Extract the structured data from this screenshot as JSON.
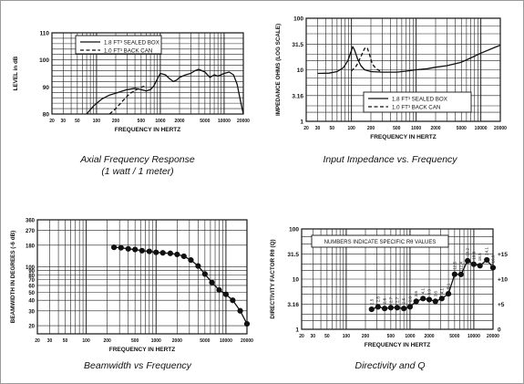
{
  "captions": {
    "afr": {
      "title": "Axial Frequency Response",
      "subtitle": "(1 watt / 1 meter)"
    },
    "imp": {
      "title": "Input Impedance vs. Frequency"
    },
    "bw": {
      "title": "Beamwidth vs Frequency"
    },
    "dq": {
      "title": "Directivity and Q"
    }
  },
  "colors": {
    "ink": "#111111",
    "grid": "#222222",
    "background": "#ffffff"
  },
  "chart_data": [
    {
      "id": "afr",
      "type": "line",
      "xlabel": "FREQUENCY IN HERTZ",
      "ylabel": "LEVEL in dB",
      "xscale": "log",
      "xlim": [
        20,
        20000
      ],
      "ylim": [
        80,
        110
      ],
      "xticks": [
        {
          "v": 20,
          "t": "20"
        },
        {
          "v": 30,
          "t": "30"
        },
        {
          "v": 50,
          "t": "50"
        },
        {
          "v": 100,
          "t": "100"
        },
        {
          "v": 200,
          "t": "200"
        },
        {
          "v": 500,
          "t": "500"
        },
        {
          "v": 1000,
          "t": "1000"
        },
        {
          "v": 2000,
          "t": "2000"
        },
        {
          "v": 5000,
          "t": "5000"
        },
        {
          "v": 10000,
          "t": "10000"
        },
        {
          "v": 20000,
          "t": "20000"
        }
      ],
      "yticks": [
        {
          "v": 80,
          "t": "80"
        },
        {
          "v": 90,
          "t": "90"
        },
        {
          "v": 100,
          "t": "100"
        },
        {
          "v": 110,
          "t": "110"
        }
      ],
      "legend": [
        "1.8 FT³ SEALED BOX",
        "1.0 FT³ BACK CAN"
      ],
      "legend_position": "top-left",
      "series": [
        {
          "name": "1.8 FT³ SEALED BOX",
          "style": "solid",
          "points": [
            [
              70,
              80
            ],
            [
              90,
              83
            ],
            [
              120,
              85.5
            ],
            [
              160,
              87
            ],
            [
              220,
              88
            ],
            [
              300,
              89
            ],
            [
              400,
              89.5
            ],
            [
              500,
              89
            ],
            [
              600,
              88.5
            ],
            [
              700,
              89
            ],
            [
              800,
              90.5
            ],
            [
              900,
              93
            ],
            [
              1000,
              95
            ],
            [
              1200,
              94.5
            ],
            [
              1400,
              93
            ],
            [
              1600,
              92
            ],
            [
              1800,
              92.5
            ],
            [
              2000,
              93.5
            ],
            [
              2500,
              94.5
            ],
            [
              3000,
              95
            ],
            [
              3500,
              96
            ],
            [
              4000,
              96.5
            ],
            [
              5000,
              95.5
            ],
            [
              6000,
              93.5
            ],
            [
              7000,
              94.5
            ],
            [
              8000,
              94
            ],
            [
              10000,
              95
            ],
            [
              12000,
              95.5
            ],
            [
              14000,
              94.5
            ],
            [
              16000,
              91
            ],
            [
              18000,
              85
            ],
            [
              20000,
              80
            ]
          ]
        },
        {
          "name": "1.0 FT³ BACK CAN",
          "style": "dashed",
          "points": [
            [
              160,
              80
            ],
            [
              200,
              82
            ],
            [
              260,
              85
            ],
            [
              330,
              87.5
            ],
            [
              420,
              89
            ],
            [
              520,
              90
            ],
            [
              600,
              90.5
            ]
          ]
        }
      ]
    },
    {
      "id": "imp",
      "type": "line",
      "xlabel": "FREQUENCY IN HERTZ",
      "ylabel": "IMPEDANCE OHMS (LOG SCALE)",
      "xscale": "log",
      "yscale": "log",
      "xlim": [
        20,
        20000
      ],
      "ylim": [
        1,
        100
      ],
      "xticks": [
        {
          "v": 20,
          "t": "20"
        },
        {
          "v": 30,
          "t": "30"
        },
        {
          "v": 50,
          "t": "50"
        },
        {
          "v": 100,
          "t": "100"
        },
        {
          "v": 200,
          "t": "200"
        },
        {
          "v": 500,
          "t": "500"
        },
        {
          "v": 1000,
          "t": "1000"
        },
        {
          "v": 2000,
          "t": "2000"
        },
        {
          "v": 5000,
          "t": "5000"
        },
        {
          "v": 10000,
          "t": "10000"
        },
        {
          "v": 20000,
          "t": "20000"
        }
      ],
      "yticks": [
        {
          "v": 1,
          "t": "1"
        },
        {
          "v": 3.16,
          "t": "3.16"
        },
        {
          "v": 10,
          "t": "10"
        },
        {
          "v": 31.5,
          "t": "31.5"
        },
        {
          "v": 100,
          "t": "100"
        }
      ],
      "legend": [
        "1.8 FT³ SEALED BOX",
        "1.0 FT³ BACK CAN"
      ],
      "legend_position": "bottom-right",
      "series": [
        {
          "name": "1.8 FT³ SEALED BOX",
          "style": "solid",
          "points": [
            [
              30,
              8.5
            ],
            [
              45,
              8.6
            ],
            [
              60,
              9.2
            ],
            [
              75,
              11
            ],
            [
              88,
              15
            ],
            [
              98,
              22
            ],
            [
              105,
              28
            ],
            [
              112,
              24
            ],
            [
              125,
              16
            ],
            [
              140,
              12
            ],
            [
              160,
              10
            ],
            [
              200,
              9.2
            ],
            [
              300,
              9
            ],
            [
              500,
              9
            ],
            [
              700,
              9.4
            ],
            [
              1000,
              10
            ],
            [
              1500,
              10.5
            ],
            [
              2000,
              11.2
            ],
            [
              3000,
              12
            ],
            [
              5000,
              14
            ],
            [
              7000,
              17
            ],
            [
              10000,
              21
            ],
            [
              15000,
              26
            ],
            [
              20000,
              30
            ]
          ]
        },
        {
          "name": "1.0 FT³ BACK CAN",
          "style": "dashed",
          "points": [
            [
              100,
              9.5
            ],
            [
              120,
              12
            ],
            [
              140,
              18
            ],
            [
              160,
              26
            ],
            [
              175,
              27
            ],
            [
              190,
              20
            ],
            [
              210,
              13
            ],
            [
              240,
              10.5
            ],
            [
              280,
              9.4
            ]
          ]
        }
      ]
    },
    {
      "id": "bw",
      "type": "line",
      "xlabel": "FREQUENCY IN HERTZ",
      "ylabel": "BEAMWIDTH IN DEGREES (-6 dB)",
      "xscale": "log",
      "yscale": "log",
      "xlim": [
        20,
        20000
      ],
      "ylim": [
        16,
        360
      ],
      "xticks": [
        {
          "v": 20,
          "t": "20"
        },
        {
          "v": 30,
          "t": "30"
        },
        {
          "v": 50,
          "t": "50"
        },
        {
          "v": 100,
          "t": "100"
        },
        {
          "v": 200,
          "t": "200"
        },
        {
          "v": 500,
          "t": "500"
        },
        {
          "v": 1000,
          "t": "1000"
        },
        {
          "v": 2000,
          "t": "2000"
        },
        {
          "v": 5000,
          "t": "5000"
        },
        {
          "v": 10000,
          "t": "10000"
        },
        {
          "v": 20000,
          "t": "20000"
        }
      ],
      "yticks": [
        {
          "v": 20,
          "t": "20"
        },
        {
          "v": 30,
          "t": "30"
        },
        {
          "v": 40,
          "t": "40"
        },
        {
          "v": 50,
          "t": "50"
        },
        {
          "v": 60,
          "t": "60"
        },
        {
          "v": 70,
          "t": "70"
        },
        {
          "v": 80,
          "t": "80"
        },
        {
          "v": 90,
          "t": "90"
        },
        {
          "v": 100,
          "t": "100"
        },
        {
          "v": 180,
          "t": "180"
        },
        {
          "v": 270,
          "t": "270"
        },
        {
          "v": 360,
          "t": "360"
        }
      ],
      "series": [
        {
          "name": "",
          "style": "solid-markers",
          "points": [
            [
              250,
              170
            ],
            [
              315,
              168
            ],
            [
              400,
              163
            ],
            [
              500,
              160
            ],
            [
              630,
              155
            ],
            [
              800,
              152
            ],
            [
              1000,
              148
            ],
            [
              1250,
              146
            ],
            [
              1600,
              144
            ],
            [
              2000,
              140
            ],
            [
              2500,
              133
            ],
            [
              3150,
              120
            ],
            [
              4000,
              102
            ],
            [
              5000,
              82
            ],
            [
              6300,
              65
            ],
            [
              8000,
              53
            ],
            [
              10000,
              47
            ],
            [
              12500,
              40
            ],
            [
              16000,
              30
            ],
            [
              20000,
              21
            ]
          ]
        }
      ]
    },
    {
      "id": "dq",
      "type": "line",
      "xlabel": "FREQUENCY IN HERTZ",
      "ylabel": "DIRECTIVITY FACTOR Rθ (Q)",
      "xscale": "log",
      "yscale": "log",
      "xlim": [
        20,
        20000
      ],
      "ylim": [
        1,
        100
      ],
      "xticks": [
        {
          "v": 20,
          "t": "20"
        },
        {
          "v": 30,
          "t": "30"
        },
        {
          "v": 50,
          "t": "50"
        },
        {
          "v": 100,
          "t": "100"
        },
        {
          "v": 200,
          "t": "200"
        },
        {
          "v": 500,
          "t": "500"
        },
        {
          "v": 1000,
          "t": "1000"
        },
        {
          "v": 2000,
          "t": "2000"
        },
        {
          "v": 5000,
          "t": "5000"
        },
        {
          "v": 10000,
          "t": "10000"
        },
        {
          "v": 20000,
          "t": "20000"
        }
      ],
      "yticks": [
        {
          "v": 1,
          "t": "1"
        },
        {
          "v": 3.16,
          "t": "3.16"
        },
        {
          "v": 10,
          "t": "10"
        },
        {
          "v": 31.5,
          "t": "31.5"
        },
        {
          "v": 100,
          "t": "100"
        }
      ],
      "yticks_right": [
        {
          "v": 1,
          "t": "0"
        },
        {
          "v": 3.16,
          "t": "+5"
        },
        {
          "v": 10,
          "t": "+10"
        },
        {
          "v": 31.5,
          "t": "+15"
        }
      ],
      "annotation_box": "NUMBERS INDICATE SPECIFIC Rθ VALUES",
      "series": [
        {
          "name": "",
          "style": "solid-markers",
          "points": [
            [
              250,
              2.5
            ],
            [
              315,
              2.8
            ],
            [
              400,
              2.6
            ],
            [
              500,
              2.7
            ],
            [
              630,
              2.7
            ],
            [
              800,
              2.6
            ],
            [
              1000,
              2.8
            ],
            [
              1250,
              3.6
            ],
            [
              1600,
              4.1
            ],
            [
              2000,
              3.9
            ],
            [
              2500,
              3.6
            ],
            [
              3150,
              4.1
            ],
            [
              4000,
              5.1
            ],
            [
              5000,
              12.5
            ],
            [
              6300,
              12.4
            ],
            [
              8000,
              23.2
            ],
            [
              10000,
              19.8
            ],
            [
              12500,
              18.5
            ],
            [
              16000,
              24.1
            ],
            [
              20000,
              16.9
            ]
          ],
          "labels": [
            "2.5",
            "2.8",
            "2.6",
            "2.7",
            "2.7",
            "2.6",
            "2.8",
            "3.6",
            "4.1",
            "3.9",
            "3.6",
            "4.1",
            "5.1",
            "12.5",
            "12.4",
            "23.2",
            "19.8",
            "18.5",
            "24.1",
            "16.9"
          ]
        }
      ]
    }
  ]
}
